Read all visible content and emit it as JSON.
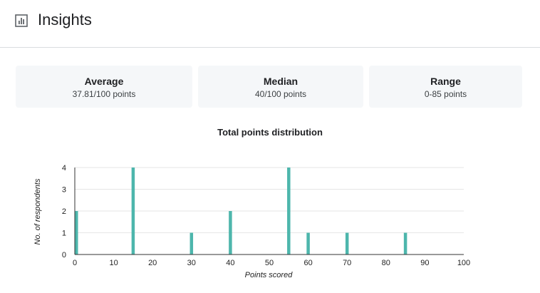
{
  "header": {
    "title": "Insights",
    "icon": "bar-chart-icon"
  },
  "stats": {
    "average": {
      "label": "Average",
      "value": "37.81/100 points"
    },
    "median": {
      "label": "Median",
      "value": "40/100 points"
    },
    "range": {
      "label": "Range",
      "value": "0-85 points"
    }
  },
  "colors": {
    "bar": "#4db6ac",
    "card_bg": "#f5f7f9",
    "divider": "#dadce0"
  },
  "chart_data": {
    "type": "bar",
    "title": "Total points distribution",
    "xlabel": "Points scored",
    "ylabel": "No. of respondents",
    "xlim": [
      0,
      100
    ],
    "ylim": [
      0,
      4
    ],
    "xticks": [
      0,
      10,
      20,
      30,
      40,
      50,
      60,
      70,
      80,
      90,
      100
    ],
    "yticks": [
      0,
      1,
      2,
      3,
      4
    ],
    "grid": true,
    "x": [
      0,
      15,
      30,
      40,
      55,
      60,
      70,
      85
    ],
    "values": [
      2,
      4,
      1,
      2,
      4,
      1,
      1,
      1
    ]
  }
}
